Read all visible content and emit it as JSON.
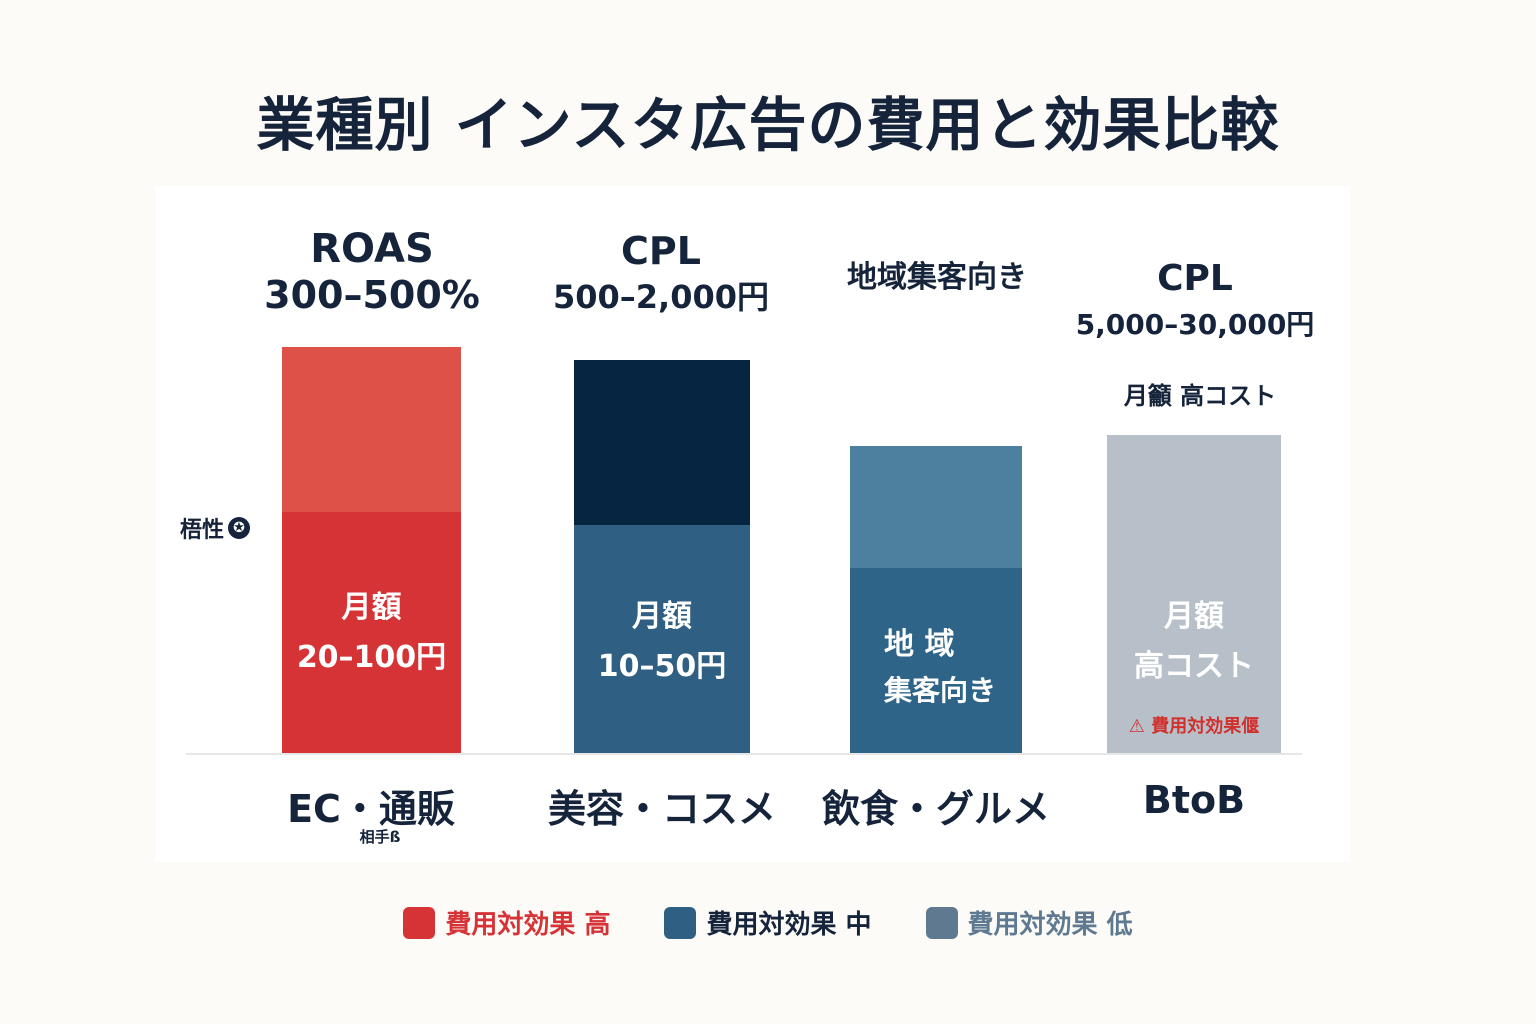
{
  "title": "業種別 インスタ広告の費用と効果比較",
  "side_note": "梧性",
  "colors": {
    "high": "#d63337",
    "high_upper": "#de5149",
    "mid_dark": "#062540",
    "mid": "#2f5f82",
    "local_upper": "#4d7f9e",
    "local": "#2e6488",
    "low": "#b7c0c9",
    "legend_low": "#5f7a90"
  },
  "chart_data": {
    "type": "bar",
    "title": "業種別 インスタ広告の費用と効果比較",
    "categories": [
      "EC・通販",
      "美容・コスメ",
      "飲食・グルメ",
      "BtoB"
    ],
    "series": [
      {
        "values": [
          {
            "category": "EC・通販",
            "sub_label": "相手ß",
            "top_label": [
              "ROAS",
              "300–500%"
            ],
            "inner_label": [
              "月額",
              "20–100円"
            ],
            "effectiveness": "high"
          },
          {
            "category": "美容・コスメ",
            "top_label": [
              "CPL",
              "500–2,000円"
            ],
            "inner_label": [
              "月額",
              "10–50円"
            ],
            "effectiveness": "mid"
          },
          {
            "category": "飲食・グルメ",
            "top_label": [
              "地域集客向き"
            ],
            "inner_label": [
              "地 域",
              "集客向き"
            ],
            "effectiveness": "mid"
          },
          {
            "category": "BtoB",
            "top_label": [
              "CPL",
              "5,000–30,000円"
            ],
            "note_label": "月籲 高コスト",
            "inner_label": [
              "月額",
              "高コスト"
            ],
            "warning": "⚠ 費用対効果偃",
            "effectiveness": "low"
          }
        ]
      }
    ],
    "legend": [
      {
        "label": "費用対効果 高",
        "color": "#d63337"
      },
      {
        "label": "費用対効果 中",
        "color": "#2f5f82"
      },
      {
        "label": "費用対効果 低",
        "color": "#5f7a90"
      }
    ],
    "legend_position": "bottom",
    "grid": false
  }
}
